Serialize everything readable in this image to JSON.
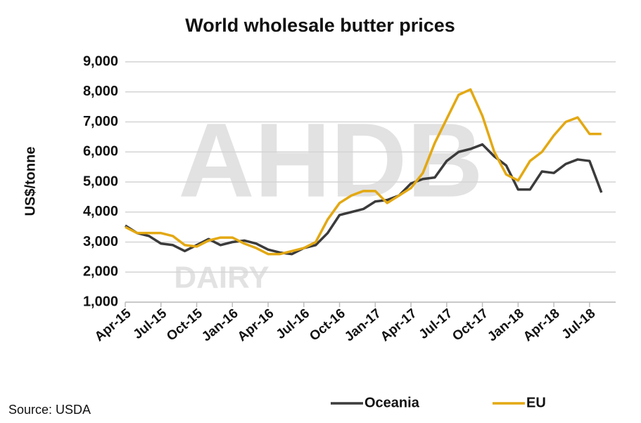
{
  "chart_data": {
    "type": "line",
    "title": "World wholesale butter prices",
    "y_label": "US$/tonne",
    "source": "Source: USDA",
    "watermark": [
      "AHDB",
      "DAIRY"
    ],
    "categories": [
      "Apr-15",
      null,
      null,
      "Jul-15",
      null,
      null,
      "Oct-15",
      null,
      null,
      "Jan-16",
      null,
      null,
      "Apr-16",
      null,
      null,
      "Jul-16",
      null,
      null,
      "Oct-16",
      null,
      null,
      "Jan-17",
      null,
      null,
      "Apr-17",
      null,
      null,
      "Jul-17",
      null,
      null,
      "Oct-17",
      null,
      null,
      "Jan-18",
      null,
      null,
      "Apr-18",
      null,
      null,
      "Jul-18",
      null
    ],
    "series": [
      {
        "name": "Oceania",
        "color": "#3b3b3b",
        "values": [
          3550,
          3300,
          3200,
          2950,
          2900,
          2700,
          2900,
          3100,
          2900,
          3000,
          3050,
          2950,
          2750,
          2650,
          2600,
          2800,
          2900,
          3300,
          3900,
          4000,
          4100,
          4350,
          4400,
          4550,
          4950,
          5100,
          5150,
          5700,
          6000,
          6100,
          6250,
          5850,
          5550,
          4750,
          4750,
          5350,
          5300,
          5600,
          5750,
          5700,
          4650
        ]
      },
      {
        "name": "EU",
        "color": "#e3a812",
        "values": [
          3500,
          3300,
          3300,
          3300,
          3200,
          2900,
          2850,
          3050,
          3150,
          3150,
          2950,
          2800,
          2600,
          2600,
          2700,
          2800,
          3000,
          3750,
          4300,
          4550,
          4700,
          4700,
          4300,
          4550,
          4800,
          5300,
          6300,
          7100,
          7900,
          8080,
          7200,
          6000,
          5250,
          5050,
          5700,
          6000,
          6550,
          7000,
          7150,
          6600,
          6600
        ]
      }
    ],
    "ylim": [
      1000,
      9000
    ],
    "yticks": [
      {
        "value": 1000,
        "label": "1,000"
      },
      {
        "value": 2000,
        "label": "2,000"
      },
      {
        "value": 3000,
        "label": "3,000"
      },
      {
        "value": 4000,
        "label": "4,000"
      },
      {
        "value": 5000,
        "label": "5,000"
      },
      {
        "value": 6000,
        "label": "6,000"
      },
      {
        "value": 7000,
        "label": "7,000"
      },
      {
        "value": 8000,
        "label": "8,000"
      },
      {
        "value": 9000,
        "label": "9,000"
      }
    ],
    "grid": true
  }
}
